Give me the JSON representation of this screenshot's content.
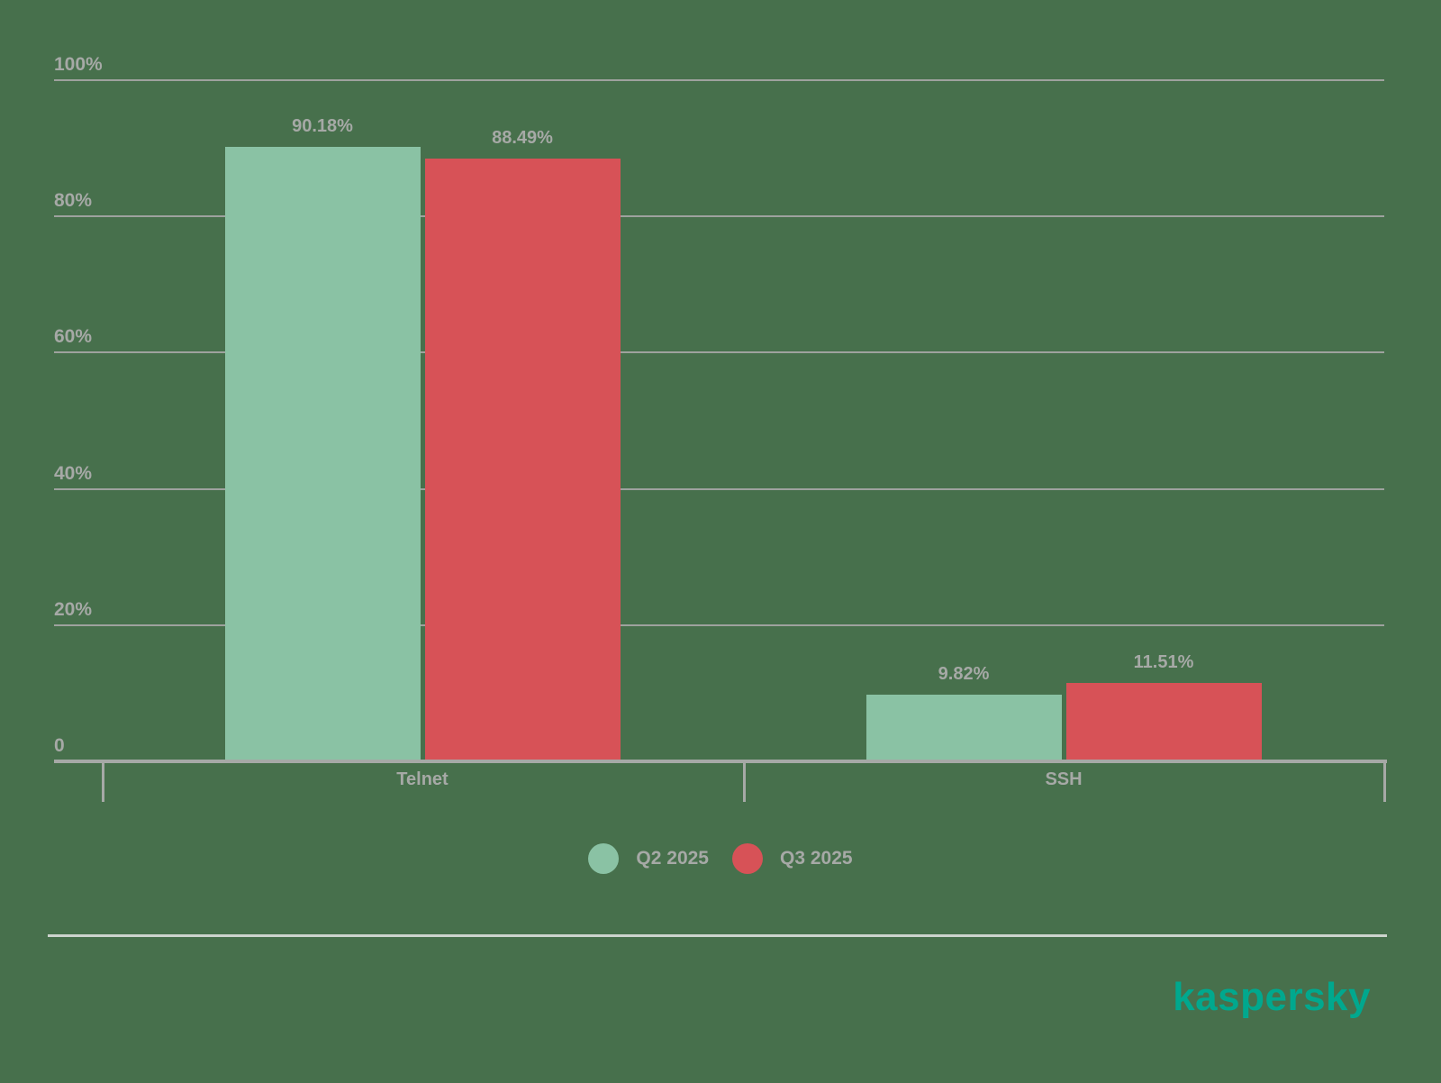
{
  "chart_data": {
    "type": "bar",
    "categories": [
      "Telnet",
      "SSH"
    ],
    "series": [
      {
        "name": "Q2 2025",
        "color": "#8AC2A4",
        "values": [
          90.18,
          9.82
        ],
        "labels": [
          "90.18%",
          "9.82%"
        ]
      },
      {
        "name": "Q3 2025",
        "color": "#D75257",
        "values": [
          88.49,
          11.51
        ],
        "labels": [
          "88.49%",
          "11.51%"
        ]
      }
    ],
    "title": "",
    "xlabel": "",
    "ylabel": "",
    "ylim": [
      0,
      100
    ],
    "yticks": [
      {
        "value": 100,
        "label": "100%"
      },
      {
        "value": 80,
        "label": "80%"
      },
      {
        "value": 60,
        "label": "60%"
      },
      {
        "value": 40,
        "label": "40%"
      },
      {
        "value": 20,
        "label": "20%"
      },
      {
        "value": 0,
        "label": "0"
      }
    ],
    "grid": true,
    "legend_position": "bottom-center"
  },
  "colors": {
    "background": "#47704C",
    "series_q2": "#8AC2A4",
    "series_q3": "#D75257",
    "text_gray": "#A6A9A6",
    "gridline": "#9EA29E",
    "divider": "#CDD3CD",
    "brand_teal": "#00A88E"
  },
  "branding": {
    "logo_text": "kaspersky"
  }
}
